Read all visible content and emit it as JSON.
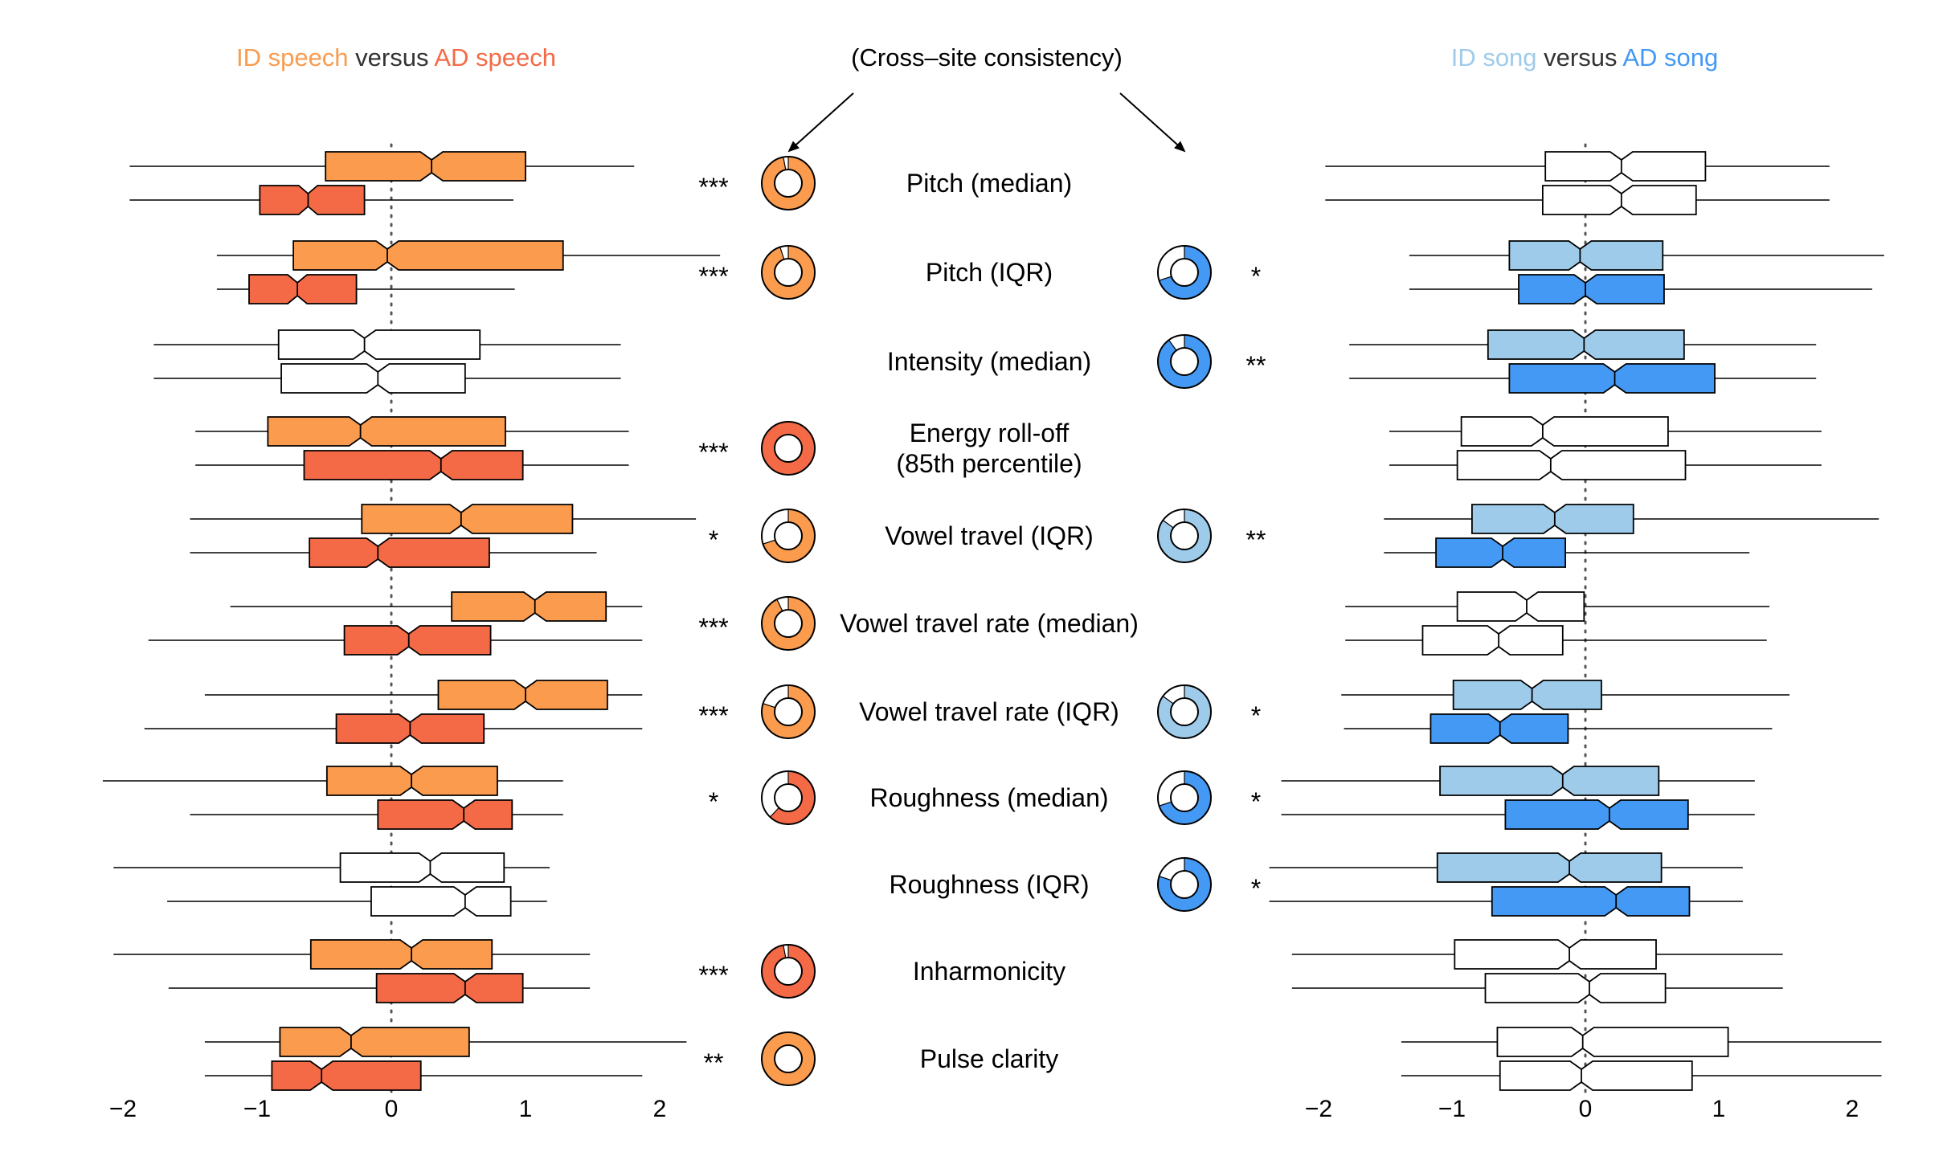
{
  "header": {
    "left": [
      {
        "text": "ID speech",
        "role": "id_speech"
      },
      {
        "text": " versus ",
        "role": "plain"
      },
      {
        "text": "AD speech",
        "role": "ad_speech"
      }
    ],
    "center": "(Cross–site consistency)",
    "right": [
      {
        "text": "ID song",
        "role": "id_song"
      },
      {
        "text": " versus ",
        "role": "plain"
      },
      {
        "text": "AD song",
        "role": "ad_song"
      }
    ]
  },
  "colors": {
    "id_speech": "#FA9B4E",
    "ad_speech": "#F46A47",
    "id_song": "#9FCBEA",
    "ad_song": "#4499F4",
    "plain": "#333333",
    "center_title": "#7f7f7f"
  },
  "chart_data": [
    {
      "type": "box",
      "panel": "left",
      "groups": [
        "ID speech",
        "AD speech"
      ],
      "xlim": [
        -2.1,
        2.2
      ],
      "xticks": [
        -2,
        -1,
        0,
        1,
        2
      ],
      "xtick_labels": [
        "−2",
        "−1",
        "0",
        "1",
        "2"
      ],
      "reference_line": 0,
      "features": [
        {
          "label": "Pitch (median)",
          "sig": "***",
          "id": {
            "whisker": [
              -1.95,
              1.81
            ],
            "q1": -0.49,
            "median": 0.3,
            "q3": 1.0,
            "colored": true
          },
          "ad": {
            "whisker": [
              -1.95,
              0.91
            ],
            "q1": -0.98,
            "median": -0.62,
            "q3": -0.2,
            "colored": true
          }
        },
        {
          "label": "Pitch (IQR)",
          "sig": "***",
          "id": {
            "whisker": [
              -1.3,
              2.45
            ],
            "q1": -0.73,
            "median": -0.03,
            "q3": 1.28,
            "colored": true
          },
          "ad": {
            "whisker": [
              -1.3,
              0.92
            ],
            "q1": -1.06,
            "median": -0.7,
            "q3": -0.26,
            "colored": true
          }
        },
        {
          "label": "Intensity (median)",
          "sig": "",
          "id": {
            "whisker": [
              -1.77,
              1.71
            ],
            "q1": -0.84,
            "median": -0.2,
            "q3": 0.66,
            "colored": false
          },
          "ad": {
            "whisker": [
              -1.77,
              1.71
            ],
            "q1": -0.82,
            "median": -0.1,
            "q3": 0.55,
            "colored": false
          }
        },
        {
          "label": "Energy roll-off\n(85th percentile)",
          "sig": "***",
          "id": {
            "whisker": [
              -1.46,
              1.77
            ],
            "q1": -0.92,
            "median": -0.23,
            "q3": 0.85,
            "colored": true
          },
          "ad": {
            "whisker": [
              -1.46,
              1.77
            ],
            "q1": -0.65,
            "median": 0.37,
            "q3": 0.98,
            "colored": true
          }
        },
        {
          "label": "Vowel travel (IQR)",
          "sig": "*",
          "id": {
            "whisker": [
              -1.5,
              2.27
            ],
            "q1": -0.22,
            "median": 0.52,
            "q3": 1.35,
            "colored": true
          },
          "ad": {
            "whisker": [
              -1.5,
              1.53
            ],
            "q1": -0.61,
            "median": -0.1,
            "q3": 0.73,
            "colored": true
          }
        },
        {
          "label": "Vowel travel rate (median)",
          "sig": "***",
          "id": {
            "whisker": [
              -1.2,
              1.87
            ],
            "q1": 0.45,
            "median": 1.07,
            "q3": 1.6,
            "colored": true
          },
          "ad": {
            "whisker": [
              -1.81,
              1.87
            ],
            "q1": -0.35,
            "median": 0.13,
            "q3": 0.74,
            "colored": true
          }
        },
        {
          "label": "Vowel travel rate (IQR)",
          "sig": "***",
          "id": {
            "whisker": [
              -1.39,
              1.87
            ],
            "q1": 0.35,
            "median": 1.0,
            "q3": 1.61,
            "colored": true
          },
          "ad": {
            "whisker": [
              -1.84,
              1.87
            ],
            "q1": -0.41,
            "median": 0.14,
            "q3": 0.69,
            "colored": true
          }
        },
        {
          "label": "Roughness (median)",
          "sig": "*",
          "id": {
            "whisker": [
              -2.15,
              1.28
            ],
            "q1": -0.48,
            "median": 0.15,
            "q3": 0.79,
            "colored": true
          },
          "ad": {
            "whisker": [
              -1.5,
              1.28
            ],
            "q1": -0.1,
            "median": 0.54,
            "q3": 0.9,
            "colored": true
          }
        },
        {
          "label": "Roughness (IQR)",
          "sig": "",
          "id": {
            "whisker": [
              -2.07,
              1.18
            ],
            "q1": -0.38,
            "median": 0.29,
            "q3": 0.84,
            "colored": false
          },
          "ad": {
            "whisker": [
              -1.67,
              1.16
            ],
            "q1": -0.15,
            "median": 0.55,
            "q3": 0.89,
            "colored": false
          }
        },
        {
          "label": "Inharmonicity",
          "sig": "***",
          "id": {
            "whisker": [
              -2.07,
              1.48
            ],
            "q1": -0.6,
            "median": 0.15,
            "q3": 0.75,
            "colored": true
          },
          "ad": {
            "whisker": [
              -1.66,
              1.48
            ],
            "q1": -0.11,
            "median": 0.55,
            "q3": 0.98,
            "colored": true
          }
        },
        {
          "label": "Pulse clarity",
          "sig": "**",
          "id": {
            "whisker": [
              -1.39,
              2.2
            ],
            "q1": -0.83,
            "median": -0.3,
            "q3": 0.58,
            "colored": true
          },
          "ad": {
            "whisker": [
              -1.39,
              1.87
            ],
            "q1": -0.89,
            "median": -0.52,
            "q3": 0.22,
            "colored": true
          }
        }
      ]
    },
    {
      "type": "box",
      "panel": "right",
      "groups": [
        "ID song",
        "AD song"
      ],
      "xlim": [
        -2.3,
        2.2
      ],
      "xticks": [
        -2,
        -1,
        0,
        1,
        2
      ],
      "xtick_labels": [
        "−2",
        "−1",
        "0",
        "1",
        "2"
      ],
      "reference_line": 0,
      "features": [
        {
          "label": "Pitch (median)",
          "sig": "",
          "id": {
            "whisker": [
              -1.95,
              1.83
            ],
            "q1": -0.3,
            "median": 0.27,
            "q3": 0.9,
            "colored": false
          },
          "ad": {
            "whisker": [
              -1.95,
              1.83
            ],
            "q1": -0.32,
            "median": 0.27,
            "q3": 0.83,
            "colored": false
          }
        },
        {
          "label": "Pitch (IQR)",
          "sig": "*",
          "id": {
            "whisker": [
              -1.32,
              2.24
            ],
            "q1": -0.57,
            "median": -0.04,
            "q3": 0.58,
            "colored": true
          },
          "ad": {
            "whisker": [
              -1.32,
              2.15
            ],
            "q1": -0.5,
            "median": 0.0,
            "q3": 0.59,
            "colored": true
          }
        },
        {
          "label": "Intensity (median)",
          "sig": "**",
          "id": {
            "whisker": [
              -1.77,
              1.73
            ],
            "q1": -0.73,
            "median": -0.01,
            "q3": 0.74,
            "colored": true
          },
          "ad": {
            "whisker": [
              -1.77,
              1.73
            ],
            "q1": -0.57,
            "median": 0.22,
            "q3": 0.97,
            "colored": true
          }
        },
        {
          "label": "Energy roll-off\n(85th percentile)",
          "sig": "",
          "id": {
            "whisker": [
              -1.47,
              1.77
            ],
            "q1": -0.93,
            "median": -0.32,
            "q3": 0.62,
            "colored": false
          },
          "ad": {
            "whisker": [
              -1.47,
              1.77
            ],
            "q1": -0.96,
            "median": -0.26,
            "q3": 0.75,
            "colored": false
          }
        },
        {
          "label": "Vowel travel (IQR)",
          "sig": "**",
          "id": {
            "whisker": [
              -1.51,
              2.2
            ],
            "q1": -0.85,
            "median": -0.23,
            "q3": 0.36,
            "colored": true
          },
          "ad": {
            "whisker": [
              -1.51,
              1.23
            ],
            "q1": -1.12,
            "median": -0.62,
            "q3": -0.15,
            "colored": true
          }
        },
        {
          "label": "Vowel travel rate (median)",
          "sig": "",
          "id": {
            "whisker": [
              -1.8,
              1.38
            ],
            "q1": -0.96,
            "median": -0.44,
            "q3": -0.01,
            "colored": false
          },
          "ad": {
            "whisker": [
              -1.8,
              1.36
            ],
            "q1": -1.22,
            "median": -0.65,
            "q3": -0.17,
            "colored": false
          }
        },
        {
          "label": "Vowel travel rate (IQR)",
          "sig": "*",
          "id": {
            "whisker": [
              -1.83,
              1.53
            ],
            "q1": -0.99,
            "median": -0.4,
            "q3": 0.12,
            "colored": true
          },
          "ad": {
            "whisker": [
              -1.81,
              1.4
            ],
            "q1": -1.16,
            "median": -0.64,
            "q3": -0.13,
            "colored": true
          }
        },
        {
          "label": "Roughness (median)",
          "sig": "*",
          "id": {
            "whisker": [
              -2.28,
              1.27
            ],
            "q1": -1.09,
            "median": -0.17,
            "q3": 0.55,
            "colored": true
          },
          "ad": {
            "whisker": [
              -2.28,
              1.27
            ],
            "q1": -0.6,
            "median": 0.18,
            "q3": 0.77,
            "colored": true
          }
        },
        {
          "label": "Roughness (IQR)",
          "sig": "*",
          "id": {
            "whisker": [
              -2.37,
              1.18
            ],
            "q1": -1.11,
            "median": -0.12,
            "q3": 0.57,
            "colored": true
          },
          "ad": {
            "whisker": [
              -2.37,
              1.18
            ],
            "q1": -0.7,
            "median": 0.23,
            "q3": 0.78,
            "colored": true
          }
        },
        {
          "label": "Inharmonicity",
          "sig": "",
          "id": {
            "whisker": [
              -2.2,
              1.48
            ],
            "q1": -0.98,
            "median": -0.12,
            "q3": 0.53,
            "colored": false
          },
          "ad": {
            "whisker": [
              -2.2,
              1.48
            ],
            "q1": -0.75,
            "median": 0.03,
            "q3": 0.6,
            "colored": false
          }
        },
        {
          "label": "Pulse clarity",
          "sig": "",
          "id": {
            "whisker": [
              -1.38,
              2.22
            ],
            "q1": -0.66,
            "median": -0.02,
            "q3": 1.07,
            "colored": false
          },
          "ad": {
            "whisker": [
              -1.38,
              2.22
            ],
            "q1": -0.64,
            "median": -0.03,
            "q3": 0.8,
            "colored": false
          }
        }
      ]
    },
    {
      "type": "pie",
      "panel": "center",
      "title": "(Cross–site consistency)",
      "description_unit": "fraction of sites",
      "speech": [
        {
          "feature": "Pitch (median)",
          "fraction": 0.97,
          "color_role": "id_speech"
        },
        {
          "feature": "Pitch (IQR)",
          "fraction": 0.95,
          "color_role": "id_speech"
        },
        null,
        {
          "feature": "Energy roll-off (85th percentile)",
          "fraction": 1.0,
          "color_role": "ad_speech"
        },
        {
          "feature": "Vowel travel (IQR)",
          "fraction": 0.7,
          "color_role": "id_speech"
        },
        {
          "feature": "Vowel travel rate (median)",
          "fraction": 0.93,
          "color_role": "id_speech"
        },
        {
          "feature": "Vowel travel rate (IQR)",
          "fraction": 0.8,
          "color_role": "id_speech"
        },
        {
          "feature": "Roughness (median)",
          "fraction": 0.62,
          "color_role": "ad_speech"
        },
        null,
        {
          "feature": "Inharmonicity",
          "fraction": 0.97,
          "color_role": "ad_speech"
        },
        {
          "feature": "Pulse clarity",
          "fraction": 1.0,
          "color_role": "id_speech"
        }
      ],
      "song": [
        null,
        {
          "feature": "Pitch (IQR)",
          "fraction": 0.7,
          "color_role": "ad_song"
        },
        {
          "feature": "Intensity (median)",
          "fraction": 0.9,
          "color_role": "ad_song"
        },
        null,
        {
          "feature": "Vowel travel (IQR)",
          "fraction": 0.85,
          "color_role": "id_song"
        },
        null,
        {
          "feature": "Vowel travel rate (IQR)",
          "fraction": 0.85,
          "color_role": "id_song"
        },
        {
          "feature": "Roughness (median)",
          "fraction": 0.7,
          "color_role": "ad_song"
        },
        {
          "feature": "Roughness (IQR)",
          "fraction": 0.8,
          "color_role": "ad_song"
        },
        null,
        null
      ]
    }
  ]
}
